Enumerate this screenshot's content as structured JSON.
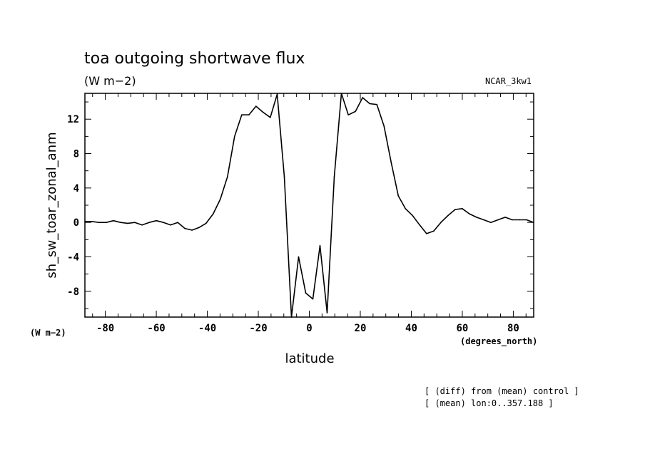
{
  "chart_data": {
    "type": "line",
    "title": "toa outgoing shortwave flux",
    "subtitle": "(W m−2)",
    "model_label": "NCAR_3kw1",
    "xlabel": "latitude",
    "ylabel": "sh_sw_toar_zonal_anm",
    "x_units": "(degrees_north)",
    "y_units": "(W m−2)",
    "xlim": [
      -88,
      88
    ],
    "ylim": [
      -11,
      15
    ],
    "x_ticks": [
      -80,
      -60,
      -40,
      -20,
      0,
      20,
      40,
      60,
      80
    ],
    "y_ticks": [
      -8,
      -4,
      0,
      4,
      8,
      12
    ],
    "grid": false,
    "annotations": [
      "[ (diff) from (mean) control ]",
      "[ (mean) lon:0..357.188 ]"
    ],
    "series": [
      {
        "x": [
          -88,
          -85.2,
          -82.4,
          -79.6,
          -76.8,
          -74.0,
          -71.2,
          -68.4,
          -65.6,
          -62.8,
          -60.0,
          -57.2,
          -54.4,
          -51.6,
          -48.8,
          -46.0,
          -43.3,
          -40.5,
          -37.7,
          -34.9,
          -32.1,
          -29.3,
          -26.5,
          -23.7,
          -20.9,
          -18.1,
          -15.3,
          -12.6,
          -9.8,
          -7.0,
          -4.2,
          -1.4,
          1.4,
          4.2,
          7.0,
          9.8,
          12.6,
          15.3,
          18.1,
          20.9,
          23.7,
          26.5,
          29.3,
          32.1,
          34.9,
          37.7,
          40.5,
          43.3,
          46.0,
          48.8,
          51.6,
          54.4,
          57.2,
          60.0,
          62.8,
          65.6,
          68.4,
          71.2,
          74.0,
          76.8,
          79.6,
          82.4,
          85.2,
          88
        ],
        "y": [
          0.1,
          0.1,
          0.0,
          0.0,
          0.2,
          0.0,
          -0.1,
          0.0,
          -0.3,
          0.0,
          0.2,
          0.0,
          -0.3,
          0.0,
          -0.7,
          -0.9,
          -0.6,
          -0.1,
          1.0,
          2.7,
          5.3,
          10.0,
          12.5,
          12.5,
          13.5,
          12.8,
          12.2,
          14.9,
          5.3,
          -11.0,
          -4.0,
          -8.2,
          -8.9,
          -2.7,
          -10.5,
          5.3,
          15.0,
          12.5,
          12.9,
          14.5,
          13.8,
          13.7,
          11.2,
          7.0,
          3.1,
          1.6,
          0.8,
          -0.3,
          -1.3,
          -1.0,
          0.0,
          0.8,
          1.5,
          1.6,
          1.0,
          0.6,
          0.3,
          0.0,
          0.3,
          0.6,
          0.3,
          0.3,
          0.3,
          0.0
        ]
      }
    ]
  }
}
